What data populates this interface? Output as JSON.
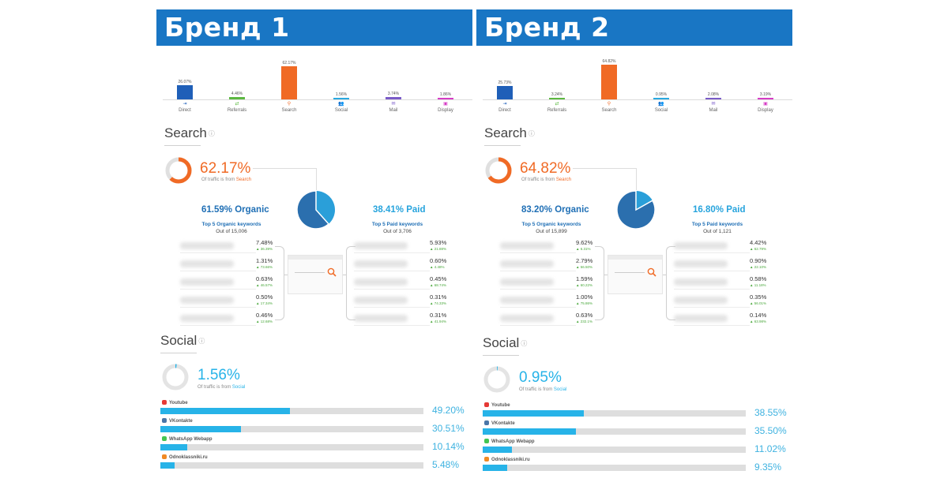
{
  "colors": {
    "header_bg": "#1976c4",
    "search_accent": "#f06a25",
    "organic": "#1f6fb5",
    "paid": "#27a4dd",
    "social": "#27b3e8",
    "positive": "#4aa83c"
  },
  "brands": [
    {
      "title": "Бренд 1",
      "channels": [
        {
          "name": "Direct",
          "value": "26.07%",
          "pct": 26.07,
          "color": "#1f5fb8",
          "icon": "direct-icon"
        },
        {
          "name": "Referrals",
          "value": "4.46%",
          "pct": 4.46,
          "color": "#5cb841",
          "icon": "referrals-icon"
        },
        {
          "name": "Search",
          "value": "62.17%",
          "pct": 62.17,
          "color": "#f06a25",
          "icon": "search-icon"
        },
        {
          "name": "Social",
          "value": "1.56%",
          "pct": 1.56,
          "color": "#29a9e0",
          "icon": "social-icon"
        },
        {
          "name": "Mail",
          "value": "3.74%",
          "pct": 3.74,
          "color": "#7a5bc8",
          "icon": "mail-icon"
        },
        {
          "name": "Display",
          "value": "1.86%",
          "pct": 1.86,
          "color": "#d63cc5",
          "icon": "display-icon"
        }
      ],
      "search": {
        "title": "Search",
        "percent": "62.17%",
        "fraction": 0.6217,
        "note_prefix": "Of traffic is from",
        "note_highlight": "Search",
        "organic_label": "61.59% Organic",
        "organic_fraction": 0.6159,
        "paid_label": "38.41% Paid",
        "organic_kw_title": "Top 5 Organic keywords",
        "organic_kw_total": "Out of 15,006",
        "paid_kw_title": "Top 5 Paid keywords",
        "paid_kw_total": "Out of 3,706",
        "organic_keywords": [
          {
            "share": "7.48%",
            "change": "▲ 36.39%"
          },
          {
            "share": "1.31%",
            "change": "▲ 73.66%"
          },
          {
            "share": "0.63%",
            "change": "▲ 46.57%"
          },
          {
            "share": "0.50%",
            "change": "▲ 17.34%"
          },
          {
            "share": "0.46%",
            "change": "▲ 12.68%"
          }
        ],
        "paid_keywords": [
          {
            "share": "5.93%",
            "change": "▲ 21.88%"
          },
          {
            "share": "0.60%",
            "change": "▲ 4.48%"
          },
          {
            "share": "0.45%",
            "change": "▲ 68.74%"
          },
          {
            "share": "0.31%",
            "change": "▲ 74.33%"
          },
          {
            "share": "0.31%",
            "change": "▲ 41.94%"
          }
        ]
      },
      "social": {
        "title": "Social",
        "percent": "1.56%",
        "fraction": 0.0156,
        "note_prefix": "Of traffic is from",
        "note_highlight": "Social",
        "networks": [
          {
            "name": "Youtube",
            "value": "49.20%",
            "pct": 49.2,
            "color": "#e53935"
          },
          {
            "name": "VKontakte",
            "value": "30.51%",
            "pct": 30.51,
            "color": "#4a76a8"
          },
          {
            "name": "WhatsApp Webapp",
            "value": "10.14%",
            "pct": 10.14,
            "color": "#43c553"
          },
          {
            "name": "Odnoklassniki.ru",
            "value": "5.48%",
            "pct": 5.48,
            "color": "#f08a24"
          }
        ]
      }
    },
    {
      "title": "Бренд 2",
      "channels": [
        {
          "name": "Direct",
          "value": "25.73%",
          "pct": 25.73,
          "color": "#1f5fb8",
          "icon": "direct-icon"
        },
        {
          "name": "Referrals",
          "value": "3.24%",
          "pct": 3.24,
          "color": "#5cb841",
          "icon": "referrals-icon"
        },
        {
          "name": "Search",
          "value": "64.82%",
          "pct": 64.82,
          "color": "#f06a25",
          "icon": "search-icon"
        },
        {
          "name": "Social",
          "value": "0.95%",
          "pct": 0.95,
          "color": "#29a9e0",
          "icon": "social-icon"
        },
        {
          "name": "Mail",
          "value": "2.08%",
          "pct": 2.08,
          "color": "#7a5bc8",
          "icon": "mail-icon"
        },
        {
          "name": "Display",
          "value": "3.19%",
          "pct": 3.19,
          "color": "#d63cc5",
          "icon": "display-icon"
        }
      ],
      "search": {
        "title": "Search",
        "percent": "64.82%",
        "fraction": 0.6482,
        "note_prefix": "Of traffic is from",
        "note_highlight": "Search",
        "organic_label": "83.20% Organic",
        "organic_fraction": 0.832,
        "paid_label": "16.80% Paid",
        "organic_kw_title": "Top 5 Organic keywords",
        "organic_kw_total": "Out of 15,899",
        "paid_kw_title": "Top 5 Paid keywords",
        "paid_kw_total": "Out of 1,121",
        "organic_keywords": [
          {
            "share": "9.62%",
            "change": "▲ 6.31%"
          },
          {
            "share": "2.79%",
            "change": "▲ 56.50%"
          },
          {
            "share": "1.59%",
            "change": "▲ 60.22%"
          },
          {
            "share": "1.00%",
            "change": "▲ 75.86%"
          },
          {
            "share": "0.63%",
            "change": "▲ 232.1%"
          }
        ],
        "paid_keywords": [
          {
            "share": "4.42%",
            "change": "▲ 62.79%"
          },
          {
            "share": "0.90%",
            "change": "▲ 22.10%"
          },
          {
            "share": "0.58%",
            "change": "▲ 11.18%"
          },
          {
            "share": "0.35%",
            "change": "▲ 56.01%"
          },
          {
            "share": "0.14%",
            "change": "▲ 63.98%"
          }
        ]
      },
      "social": {
        "title": "Social",
        "percent": "0.95%",
        "fraction": 0.0095,
        "note_prefix": "Of traffic is from",
        "note_highlight": "Social",
        "networks": [
          {
            "name": "Youtube",
            "value": "38.55%",
            "pct": 38.55,
            "color": "#e53935"
          },
          {
            "name": "VKontakte",
            "value": "35.50%",
            "pct": 35.5,
            "color": "#4a76a8"
          },
          {
            "name": "WhatsApp Webapp",
            "value": "11.02%",
            "pct": 11.02,
            "color": "#43c553"
          },
          {
            "name": "Odnoklassniki.ru",
            "value": "9.35%",
            "pct": 9.35,
            "color": "#f08a24"
          }
        ]
      }
    }
  ]
}
